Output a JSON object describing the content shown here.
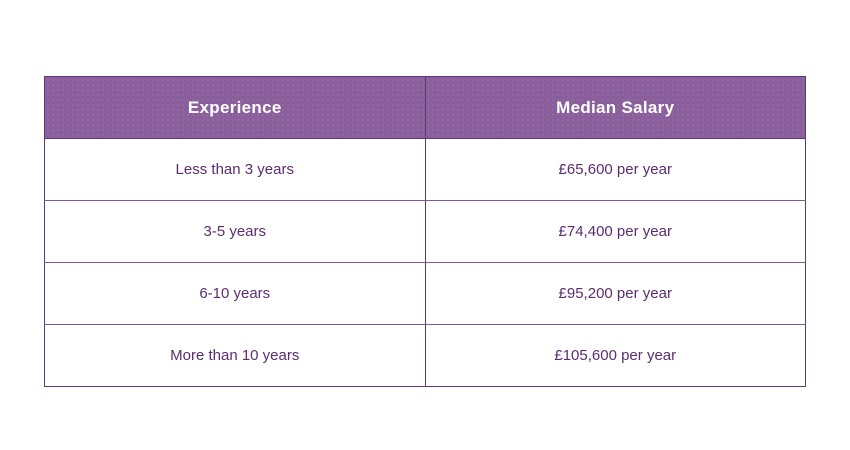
{
  "chart_data": {
    "type": "table",
    "columns": [
      "Experience",
      "Median Salary"
    ],
    "rows": [
      [
        "Less than 3 years",
        "£65,600 per year"
      ],
      [
        "3-5 years",
        "£74,400 per year"
      ],
      [
        "6-10 years",
        "£95,200 per year"
      ],
      [
        "More than 10 years",
        "£105,600 per year"
      ]
    ]
  },
  "colors": {
    "header_bg": "#8a5f9c",
    "header_text": "#ffffff",
    "body_text": "#5c2c70",
    "outer_border": "#5e3a6e",
    "row_divider": "#7d5a91",
    "column_divider": "#6d4480",
    "page_bg": "#ffffff"
  }
}
